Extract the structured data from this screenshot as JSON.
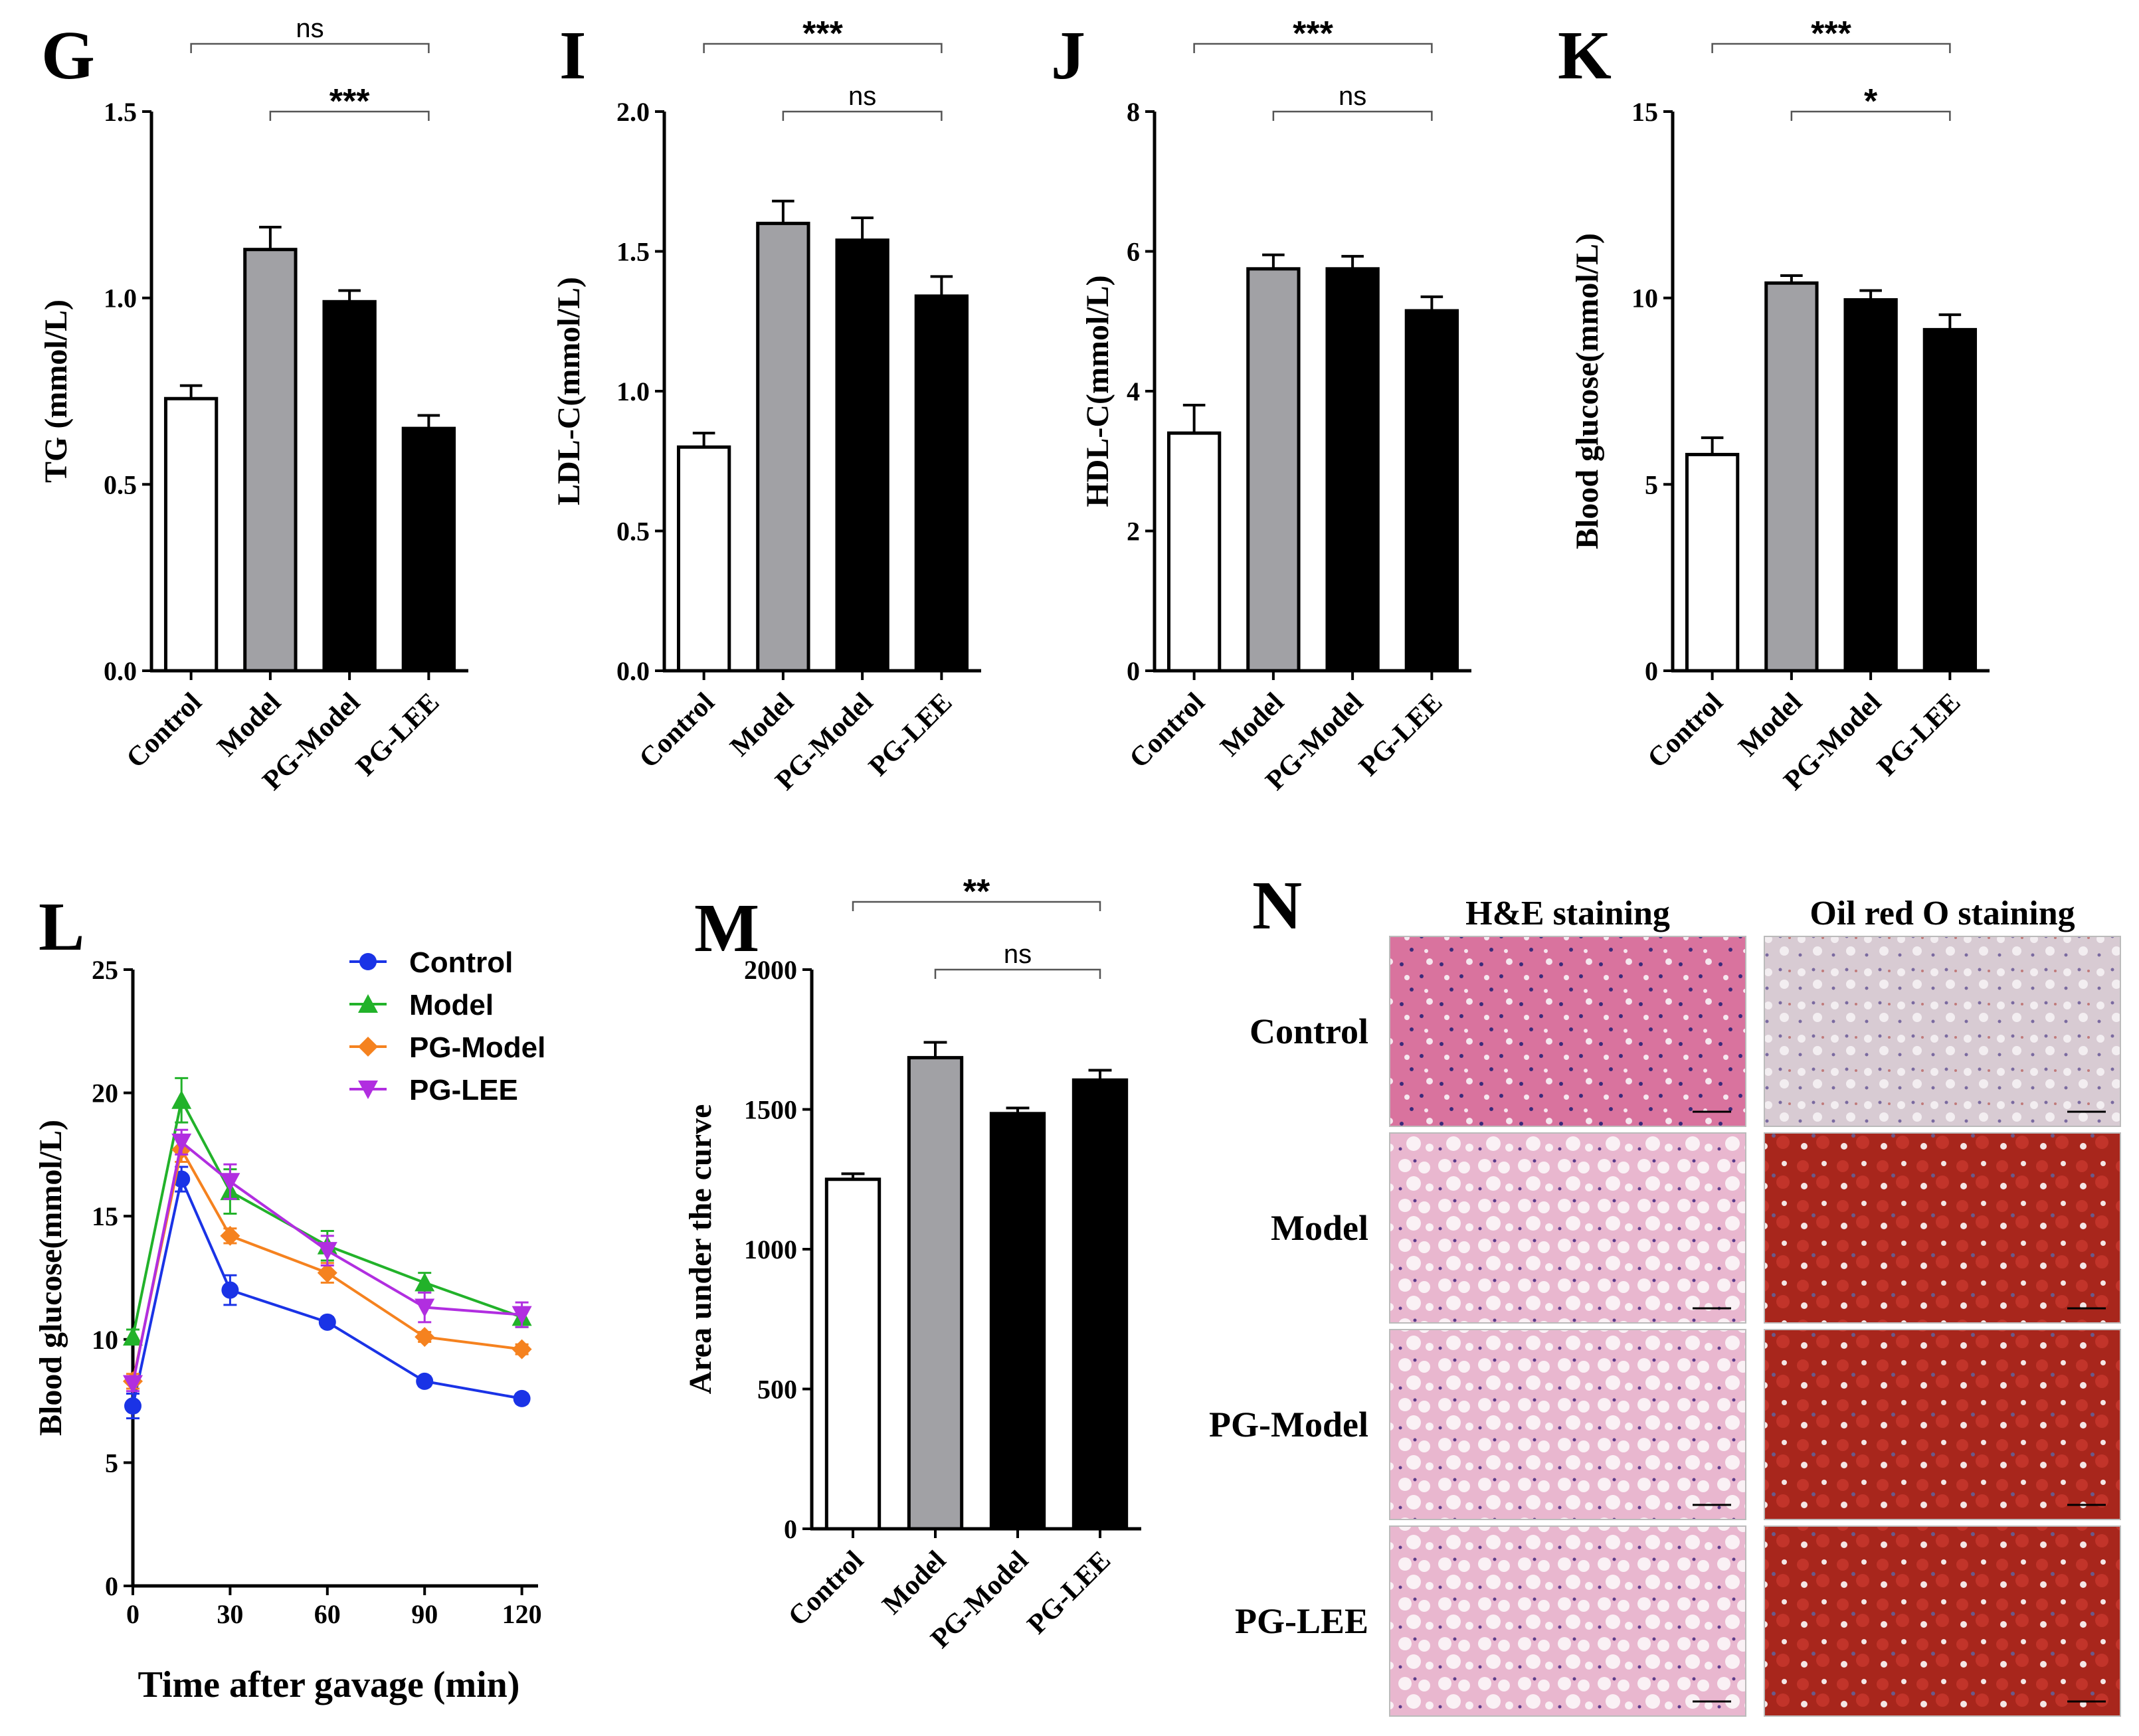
{
  "colors": {
    "control_bar": "#ffffff",
    "model_bar": "#a1a1a5",
    "pg_bar": "#000000",
    "line_control": "#1a33e6",
    "line_model": "#22b22a",
    "line_pgmodel": "#f5821f",
    "line_pglee": "#b12ee0",
    "he_stain": "#e6a2c4",
    "ormodel_stain": "#b0281e",
    "or_control_stain": "#cfc2cc"
  },
  "chart_data": [
    {
      "id": "G",
      "type": "bar",
      "panel_label": "G",
      "ylabel": "TG (mmol/L)",
      "categories": [
        "Control",
        "Model",
        "PG-Model",
        "PG-LEE"
      ],
      "values": [
        0.73,
        1.13,
        0.99,
        0.65
      ],
      "errors": [
        0.035,
        0.06,
        0.03,
        0.035
      ],
      "ylim": [
        0,
        1.5
      ],
      "yticks": [
        "0.0",
        "0.5",
        "1.0",
        "1.5"
      ],
      "ytick_values": [
        0,
        0.5,
        1.0,
        1.5
      ],
      "brackets": [
        {
          "from": 0,
          "to": 3,
          "label": "ns",
          "level": 2
        },
        {
          "from": 1,
          "to": 3,
          "label": "***",
          "level": 1
        }
      ]
    },
    {
      "id": "I",
      "type": "bar",
      "panel_label": "I",
      "ylabel": "LDL-C(mmol/L)",
      "categories": [
        "Control",
        "Model",
        "PG-Model",
        "PG-LEE"
      ],
      "values": [
        0.8,
        1.6,
        1.54,
        1.34
      ],
      "errors": [
        0.05,
        0.08,
        0.08,
        0.07
      ],
      "ylim": [
        0,
        2.0
      ],
      "yticks": [
        "0.0",
        "0.5",
        "1.0",
        "1.5",
        "2.0"
      ],
      "ytick_values": [
        0,
        0.5,
        1.0,
        1.5,
        2.0
      ],
      "brackets": [
        {
          "from": 0,
          "to": 3,
          "label": "***",
          "level": 2
        },
        {
          "from": 1,
          "to": 3,
          "label": "ns",
          "level": 1
        }
      ]
    },
    {
      "id": "J",
      "type": "bar",
      "panel_label": "J",
      "ylabel": "HDL-C(mmol/L)",
      "categories": [
        "Control",
        "Model",
        "PG-Model",
        "PG-LEE"
      ],
      "values": [
        3.4,
        5.75,
        5.75,
        5.15
      ],
      "errors": [
        0.4,
        0.2,
        0.18,
        0.2
      ],
      "ylim": [
        0,
        8
      ],
      "yticks": [
        "0",
        "2",
        "4",
        "6",
        "8"
      ],
      "ytick_values": [
        0,
        2,
        4,
        6,
        8
      ],
      "brackets": [
        {
          "from": 0,
          "to": 3,
          "label": "***",
          "level": 2
        },
        {
          "from": 1,
          "to": 3,
          "label": "ns",
          "level": 1
        }
      ]
    },
    {
      "id": "K",
      "type": "bar",
      "panel_label": "K",
      "ylabel": "Blood glucose(mmol/L)",
      "categories": [
        "Control",
        "Model",
        "PG-Model",
        "PG-LEE"
      ],
      "values": [
        5.8,
        10.4,
        9.95,
        9.15
      ],
      "errors": [
        0.45,
        0.2,
        0.25,
        0.4
      ],
      "ylim": [
        0,
        15
      ],
      "yticks": [
        "0",
        "5",
        "10",
        "15"
      ],
      "ytick_values": [
        0,
        5,
        10,
        15
      ],
      "brackets": [
        {
          "from": 0,
          "to": 3,
          "label": "***",
          "level": 2
        },
        {
          "from": 1,
          "to": 3,
          "label": "*",
          "level": 1
        }
      ]
    },
    {
      "id": "L",
      "type": "line",
      "panel_label": "L",
      "ylabel": "Blood glucose(mmol/L)",
      "xlabel": "Time after gavage (min)",
      "x": [
        0,
        15,
        30,
        60,
        90,
        120
      ],
      "xticks": [
        "0",
        "30",
        "60",
        "90",
        "120"
      ],
      "xtick_values": [
        0,
        30,
        60,
        90,
        120
      ],
      "ylim": [
        0,
        25
      ],
      "xlim": [
        0,
        125
      ],
      "yticks": [
        "0",
        "5",
        "10",
        "15",
        "20",
        "25"
      ],
      "ytick_values": [
        0,
        5,
        10,
        15,
        20,
        25
      ],
      "legend_position": "top-right",
      "series": [
        {
          "name": "Control",
          "marker": "circle",
          "values": [
            7.3,
            16.5,
            12.0,
            10.7,
            8.3,
            7.6
          ],
          "errors": [
            0.5,
            0.5,
            0.6,
            0.2,
            0.2,
            0.2
          ]
        },
        {
          "name": "Model",
          "marker": "triangle-up",
          "values": [
            10.1,
            19.7,
            16.0,
            13.8,
            12.3,
            10.9
          ],
          "errors": [
            0.3,
            0.9,
            0.9,
            0.6,
            0.4,
            0.4
          ]
        },
        {
          "name": "PG-Model",
          "marker": "diamond",
          "values": [
            8.3,
            17.7,
            14.2,
            12.7,
            10.1,
            9.6
          ],
          "errors": [
            0.3,
            0.5,
            0.3,
            0.4,
            0.2,
            0.2
          ]
        },
        {
          "name": "PG-LEE",
          "marker": "triangle-down",
          "values": [
            8.2,
            18.0,
            16.4,
            13.6,
            11.3,
            11.0
          ],
          "errors": [
            0.3,
            0.5,
            0.7,
            0.6,
            0.6,
            0.5
          ]
        }
      ]
    },
    {
      "id": "M",
      "type": "bar",
      "panel_label": "M",
      "ylabel": "Area under the curve",
      "categories": [
        "Control",
        "Model",
        "PG-Model",
        "PG-LEE"
      ],
      "values": [
        1250,
        1685,
        1485,
        1605
      ],
      "errors": [
        20,
        55,
        20,
        35
      ],
      "ylim": [
        0,
        2000
      ],
      "yticks": [
        "0",
        "500",
        "1000",
        "1500",
        "2000"
      ],
      "ytick_values": [
        0,
        500,
        1000,
        1500,
        2000
      ],
      "brackets": [
        {
          "from": 0,
          "to": 3,
          "label": "**",
          "level": 2
        },
        {
          "from": 1,
          "to": 3,
          "label": "ns",
          "level": 1
        }
      ]
    }
  ],
  "histology": {
    "panel_label": "N",
    "col_headers": [
      "H&E staining",
      "Oil red O staining"
    ],
    "rows": [
      "Control",
      "Model",
      "PG-Model",
      "PG-LEE"
    ]
  }
}
